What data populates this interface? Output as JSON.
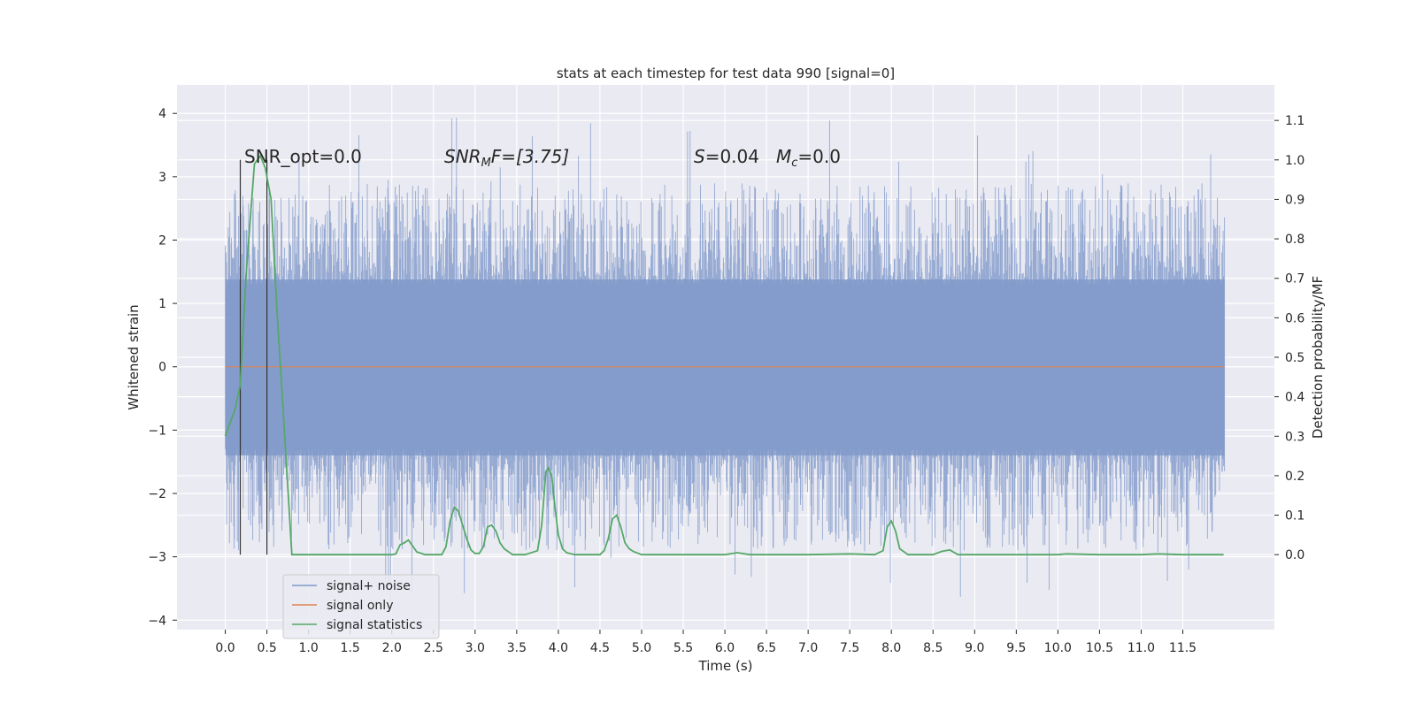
{
  "chart_data": {
    "type": "line",
    "title": "stats at each timestep for test data 990 [signal=0]",
    "xlabel": "Time (s)",
    "ylabel_left": "Whitened strain",
    "ylabel_right": "Detection probability/MF",
    "xlim": [
      -0.58,
      12.6
    ],
    "ylim_left": [
      -4.15,
      4.45
    ],
    "ylim_right": [
      -0.19,
      1.19
    ],
    "grid": true,
    "legend_position": "lower-left",
    "x_ticks": [
      "0.0",
      "0.5",
      "1.0",
      "1.5",
      "2.0",
      "2.5",
      "3.0",
      "3.5",
      "4.0",
      "4.5",
      "5.0",
      "5.5",
      "6.0",
      "6.5",
      "7.0",
      "7.5",
      "8.0",
      "8.5",
      "9.0",
      "9.5",
      "10.0",
      "10.5",
      "11.0",
      "11.5"
    ],
    "x_tick_values": [
      0,
      0.5,
      1,
      1.5,
      2,
      2.5,
      3,
      3.5,
      4,
      4.5,
      5,
      5.5,
      6,
      6.5,
      7,
      7.5,
      8,
      8.5,
      9,
      9.5,
      10,
      10.5,
      11,
      11.5
    ],
    "y_left_ticks": [
      "−4",
      "−3",
      "−2",
      "−1",
      "0",
      "1",
      "2",
      "3",
      "4"
    ],
    "y_left_tick_values": [
      -4,
      -3,
      -2,
      -1,
      0,
      1,
      2,
      3,
      4
    ],
    "y_right_ticks": [
      "0.0",
      "0.1",
      "0.2",
      "0.3",
      "0.4",
      "0.5",
      "0.6",
      "0.7",
      "0.8",
      "0.9",
      "1.0",
      "1.1"
    ],
    "y_right_tick_values": [
      0,
      0.1,
      0.2,
      0.3,
      0.4,
      0.5,
      0.6,
      0.7,
      0.8,
      0.9,
      1.0,
      1.1
    ],
    "annotations": {
      "snr_opt": "SNR_opt=0.0",
      "snr_mf_prefix": "SNR",
      "snr_mf_sub": "M",
      "snr_mf_suffix": "F=[3.75]",
      "s_label": "S",
      "s_value": "=0.04",
      "mc_label": "M",
      "mc_sub": "c",
      "mc_value": "=0.0"
    },
    "vertical_lines_x": [
      0.18,
      0.5
    ],
    "series": [
      {
        "name": "signal+ noise",
        "color": "#7f99c9",
        "x_range": [
          0,
          12.0
        ],
        "envelope_max": 4.1,
        "envelope_min": -3.75,
        "note_values": "dense noise, roughly ±1.5 core with spikes"
      },
      {
        "name": "signal only",
        "color": "#dd8452",
        "x": [
          0,
          12.0
        ],
        "values": [
          0,
          0
        ]
      },
      {
        "name": "signal statistics",
        "color": "#55a868",
        "axis": "right",
        "x": [
          0.0,
          0.12,
          0.18,
          0.25,
          0.35,
          0.42,
          0.48,
          0.55,
          0.62,
          0.7,
          0.8,
          1.0,
          1.5,
          2.0,
          2.05,
          2.1,
          2.15,
          2.2,
          2.3,
          2.4,
          2.6,
          2.65,
          2.7,
          2.75,
          2.8,
          2.85,
          2.9,
          2.95,
          3.0,
          3.05,
          3.1,
          3.15,
          3.2,
          3.25,
          3.3,
          3.35,
          3.45,
          3.6,
          3.75,
          3.8,
          3.85,
          3.88,
          3.92,
          3.96,
          4.0,
          4.05,
          4.1,
          4.2,
          4.3,
          4.5,
          4.55,
          4.6,
          4.65,
          4.7,
          4.75,
          4.8,
          4.85,
          4.9,
          5.0,
          5.5,
          6.0,
          6.15,
          6.3,
          6.5,
          7.0,
          7.5,
          7.8,
          7.9,
          7.95,
          8.0,
          8.05,
          8.1,
          8.2,
          8.5,
          8.6,
          8.7,
          8.8,
          9.0,
          9.5,
          10.0,
          10.1,
          10.5,
          11.0,
          11.2,
          11.5,
          11.99
        ],
        "values": [
          0.3,
          0.37,
          0.43,
          0.71,
          0.99,
          1.01,
          0.98,
          0.9,
          0.62,
          0.35,
          0.0,
          0.0,
          0.0,
          0.0,
          0.002,
          0.025,
          0.03,
          0.037,
          0.007,
          0.0,
          0.0,
          0.02,
          0.085,
          0.12,
          0.11,
          0.075,
          0.04,
          0.012,
          0.003,
          0.003,
          0.02,
          0.07,
          0.075,
          0.06,
          0.03,
          0.015,
          0.0,
          0.0,
          0.01,
          0.075,
          0.21,
          0.22,
          0.2,
          0.12,
          0.05,
          0.015,
          0.005,
          0.0,
          0.0,
          0.0,
          0.01,
          0.04,
          0.09,
          0.1,
          0.07,
          0.03,
          0.015,
          0.008,
          0.0,
          0.0,
          0.0,
          0.005,
          0.0,
          0.0,
          0.0,
          0.002,
          0.0,
          0.01,
          0.07,
          0.085,
          0.06,
          0.015,
          0.0,
          0.0,
          0.008,
          0.012,
          0.0,
          0.0,
          0.0,
          0.0,
          0.002,
          0.0,
          0.0,
          0.002,
          0.0,
          0.0
        ]
      }
    ]
  }
}
